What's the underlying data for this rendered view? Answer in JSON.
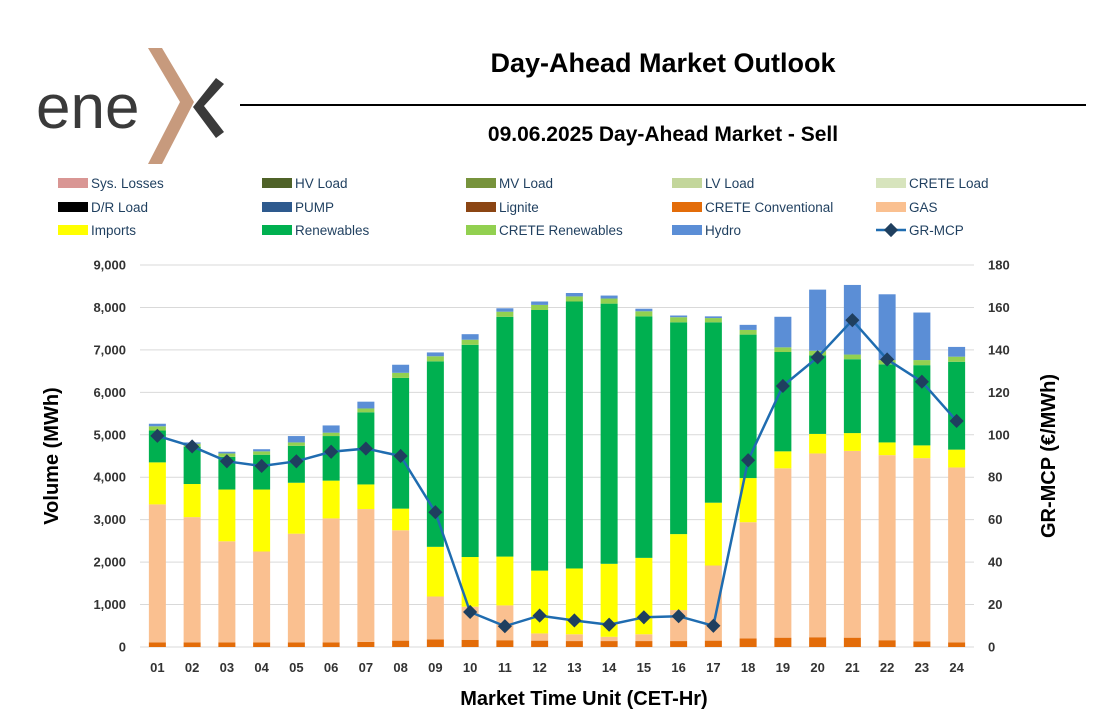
{
  "header": {
    "logo_text": "ene",
    "title": "Day-Ahead Market Outlook"
  },
  "colors": {
    "sys_losses": "#d99694",
    "hv_load": "#4f6228",
    "mv_load": "#77933c",
    "lv_load": "#c3d69b",
    "crete_load": "#d7e4bd",
    "dr_load": "#000000",
    "pump": "#2e5a8e",
    "lignite": "#8b4513",
    "crete_conv": "#e36c09",
    "gas": "#fac090",
    "imports": "#ffff00",
    "renewables": "#00b050",
    "crete_ren": "#92d050",
    "hydro": "#5b8ed6",
    "mcp": "#1f6cb0",
    "mcp_marker": "#1f3f5f",
    "logo_brand": "#c79a7d"
  },
  "chart_data": {
    "type": "bar",
    "subtitle": "09.06.2025  Day-Ahead Market - Sell",
    "xlabel": "Market Time Unit (CET-Hr)",
    "ylabel": "Volume (MWh)",
    "y2label": "GR-MCP (€/MWh)",
    "ylim": [
      0,
      9000
    ],
    "y2lim": [
      0,
      180
    ],
    "yticks": [
      "0",
      "1,000",
      "2,000",
      "3,000",
      "4,000",
      "5,000",
      "6,000",
      "7,000",
      "8,000",
      "9,000"
    ],
    "y2ticks": [
      "0",
      "20",
      "40",
      "60",
      "80",
      "100",
      "120",
      "140",
      "160",
      "180"
    ],
    "categories": [
      "01",
      "02",
      "03",
      "04",
      "05",
      "06",
      "07",
      "08",
      "09",
      "10",
      "11",
      "12",
      "13",
      "14",
      "15",
      "16",
      "17",
      "18",
      "19",
      "20",
      "21",
      "22",
      "23",
      "24"
    ],
    "legend": [
      {
        "label": "Sys. Losses",
        "key": "sys_losses",
        "kind": "box"
      },
      {
        "label": "HV Load",
        "key": "hv_load",
        "kind": "box"
      },
      {
        "label": "MV Load",
        "key": "mv_load",
        "kind": "box"
      },
      {
        "label": "LV Load",
        "key": "lv_load",
        "kind": "box"
      },
      {
        "label": "CRETE Load",
        "key": "crete_load",
        "kind": "box"
      },
      {
        "label": "D/R Load",
        "key": "dr_load",
        "kind": "box"
      },
      {
        "label": "PUMP",
        "key": "pump",
        "kind": "box"
      },
      {
        "label": "Lignite",
        "key": "lignite",
        "kind": "box"
      },
      {
        "label": "CRETE Conventional",
        "key": "crete_conv",
        "kind": "box"
      },
      {
        "label": "GAS",
        "key": "gas",
        "kind": "box"
      },
      {
        "label": "Imports",
        "key": "imports",
        "kind": "box"
      },
      {
        "label": "Renewables",
        "key": "renewables",
        "kind": "box"
      },
      {
        "label": "CRETE Renewables",
        "key": "crete_ren",
        "kind": "box"
      },
      {
        "label": "Hydro",
        "key": "hydro",
        "kind": "box"
      },
      {
        "label": "GR-MCP",
        "key": "mcp",
        "kind": "line"
      }
    ],
    "series": [
      {
        "name": "CRETE Conventional",
        "key": "crete_conv",
        "values": [
          110,
          110,
          110,
          110,
          110,
          110,
          120,
          150,
          180,
          170,
          160,
          150,
          140,
          140,
          140,
          140,
          150,
          200,
          220,
          230,
          220,
          160,
          130,
          110
        ]
      },
      {
        "name": "GAS",
        "key": "gas",
        "values": [
          3250,
          2950,
          2380,
          2140,
          2560,
          2920,
          3130,
          2600,
          1010,
          780,
          820,
          170,
          160,
          100,
          160,
          730,
          1770,
          2740,
          3990,
          4330,
          4400,
          4360,
          4320,
          4120
        ]
      },
      {
        "name": "Imports",
        "key": "imports",
        "values": [
          990,
          780,
          1220,
          1460,
          1200,
          890,
          580,
          510,
          1170,
          1170,
          1150,
          1480,
          1550,
          1720,
          1800,
          1790,
          1480,
          1040,
          400,
          460,
          420,
          300,
          300,
          420
        ]
      },
      {
        "name": "Renewables",
        "key": "renewables",
        "values": [
          750,
          880,
          770,
          820,
          870,
          1050,
          1700,
          3080,
          4370,
          5000,
          5650,
          6140,
          6290,
          6130,
          5690,
          4990,
          4250,
          3380,
          2340,
          1850,
          1740,
          1840,
          1890,
          2070
        ]
      },
      {
        "name": "CRETE Renewables",
        "key": "crete_ren",
        "values": [
          100,
          70,
          80,
          80,
          80,
          80,
          90,
          120,
          120,
          120,
          120,
          120,
          120,
          120,
          120,
          120,
          100,
          110,
          110,
          110,
          110,
          100,
          120,
          120
        ]
      },
      {
        "name": "Hydro",
        "key": "hydro",
        "values": [
          60,
          30,
          40,
          50,
          150,
          170,
          160,
          190,
          90,
          130,
          80,
          80,
          80,
          70,
          60,
          40,
          40,
          120,
          720,
          1440,
          1640,
          1550,
          1120,
          230
        ]
      }
    ],
    "mcp": {
      "name": "GR-MCP",
      "values": [
        99.5,
        94.5,
        87.5,
        85.3,
        87.5,
        92.0,
        93.5,
        90.0,
        63.5,
        16.5,
        9.8,
        14.8,
        12.5,
        10.5,
        14.0,
        14.5,
        10.0,
        88.0,
        123.0,
        136.5,
        154.0,
        135.5,
        125.0,
        106.5
      ]
    }
  }
}
